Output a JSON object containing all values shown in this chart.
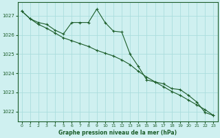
{
  "title": "Graphe pression niveau de la mer (hPa)",
  "background_color": "#cff0f0",
  "grid_color": "#aadddd",
  "line_color": "#1a5c28",
  "ylim": [
    1021.5,
    1027.7
  ],
  "xlim": [
    -0.5,
    23.5
  ],
  "yticks": [
    1022,
    1023,
    1024,
    1025,
    1026,
    1027
  ],
  "xticks": [
    0,
    1,
    2,
    3,
    4,
    5,
    6,
    7,
    8,
    9,
    10,
    11,
    12,
    13,
    14,
    15,
    16,
    17,
    18,
    19,
    20,
    21,
    22,
    23
  ],
  "line1_x": [
    0,
    1,
    2,
    3,
    4,
    5,
    6,
    7,
    8,
    9,
    10,
    11,
    12,
    13,
    14,
    15,
    16,
    17,
    18,
    19,
    20,
    21,
    22,
    23
  ],
  "line1_y": [
    1027.25,
    1026.85,
    1026.65,
    1026.55,
    1026.25,
    1026.05,
    1026.65,
    1026.65,
    1026.65,
    1027.35,
    1026.65,
    1026.2,
    1026.15,
    1025.0,
    1024.35,
    1023.65,
    1023.55,
    1023.45,
    1023.2,
    1023.15,
    1022.85,
    1022.5,
    1021.95,
    1021.8
  ],
  "line2_x": [
    0,
    1,
    2,
    3,
    4,
    5,
    6,
    7,
    8,
    9,
    10,
    11,
    12,
    13,
    14,
    15,
    16,
    17,
    18,
    19,
    20,
    21,
    22,
    23
  ],
  "line2_y": [
    1027.25,
    1026.85,
    1026.55,
    1026.35,
    1026.1,
    1025.85,
    1025.7,
    1025.55,
    1025.4,
    1025.2,
    1025.05,
    1024.9,
    1024.7,
    1024.45,
    1024.1,
    1023.8,
    1023.55,
    1023.3,
    1023.05,
    1022.85,
    1022.6,
    1022.35,
    1022.1,
    1021.8
  ]
}
